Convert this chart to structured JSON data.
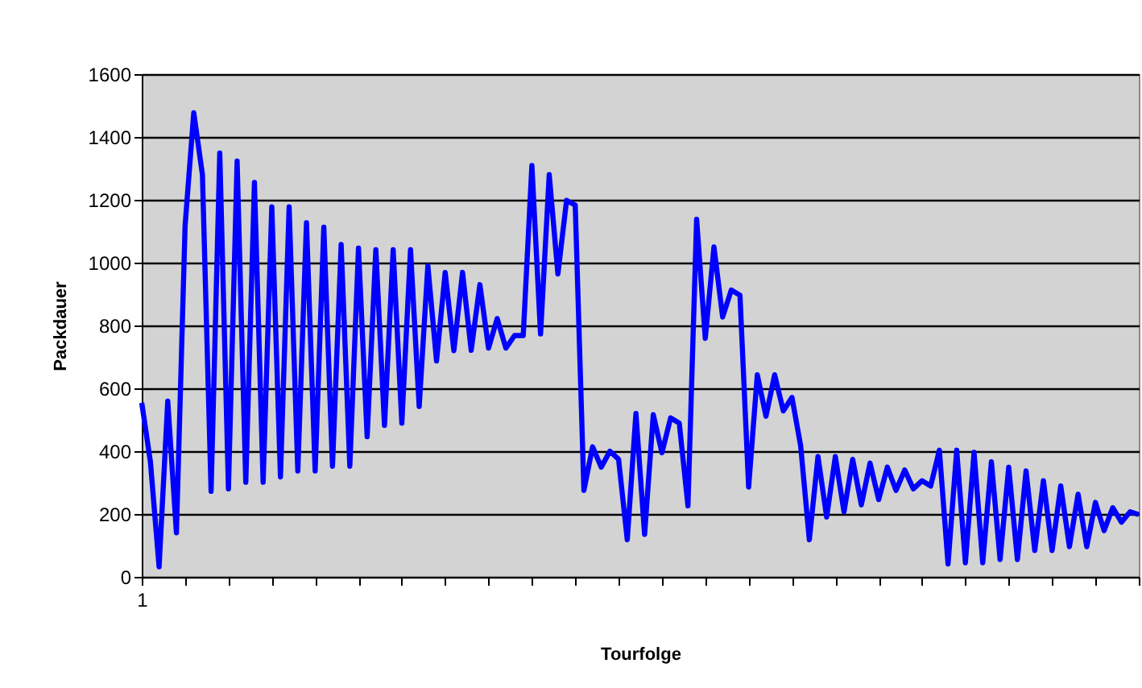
{
  "chart_data": {
    "type": "line",
    "xlabel": "Tourfolge",
    "ylabel": "Packdauer",
    "categories": [
      "1",
      null,
      null,
      null,
      null,
      null,
      null,
      null,
      null,
      null,
      null,
      null,
      null,
      null,
      null,
      null,
      null,
      null,
      null,
      null,
      null,
      null,
      null,
      null,
      null,
      null,
      null,
      null,
      null,
      null,
      null,
      null,
      null,
      null,
      null,
      null,
      null,
      null,
      null,
      null,
      null,
      null,
      null,
      null,
      null,
      null,
      null,
      null,
      null,
      null,
      null,
      null,
      null,
      null,
      null,
      null,
      null,
      null,
      null,
      null,
      null,
      null,
      null,
      null,
      null,
      null,
      null,
      null,
      null,
      null,
      null,
      null,
      null,
      null,
      null,
      null,
      null,
      null,
      null,
      null,
      null,
      null,
      null,
      null,
      null,
      null,
      null,
      null,
      null,
      null,
      null,
      null,
      null,
      null,
      null,
      null,
      null,
      null,
      null,
      null,
      null,
      null,
      null,
      null,
      null,
      null,
      null,
      null,
      null,
      null,
      null,
      null,
      null,
      null,
      null,
      null
    ],
    "series": [
      {
        "color": "#0000ff",
        "values": [
          554,
          366,
          32,
          559,
          140,
          1118,
          1477,
          1280,
          272,
          1349,
          280,
          1323,
          301,
          1255,
          301,
          1178,
          318,
          1178,
          337,
          1127,
          337,
          1113,
          352,
          1058,
          352,
          1046,
          446,
          1041,
          482,
          1041,
          489,
          1041,
          542,
          990,
          687,
          969,
          720,
          969,
          721,
          930,
          728,
          822,
          728,
          768,
          768,
          1309,
          773,
          1280,
          964,
          1198,
          1183,
          275,
          414,
          349,
          400,
          374,
          118,
          520,
          135,
          516,
          395,
          506,
          489,
          226,
          1138,
          759,
          1050,
          827,
          913,
          896,
          286,
          643,
          511,
          643,
          528,
          571,
          417,
          118,
          383,
          190,
          383,
          207,
          374,
          229,
          362,
          246,
          349,
          275,
          340,
          280,
          306,
          289,
          403,
          41,
          403,
          45,
          396,
          45,
          366,
          55,
          349,
          55,
          337,
          84,
          306,
          84,
          289,
          96,
          263,
          96,
          237,
          147,
          220,
          174,
          207,
          198
        ]
      }
    ],
    "ylim": [
      0,
      1600
    ],
    "yticks": [
      0,
      200,
      400,
      600,
      800,
      1000,
      1200,
      1400,
      1600
    ],
    "grid": "y"
  }
}
